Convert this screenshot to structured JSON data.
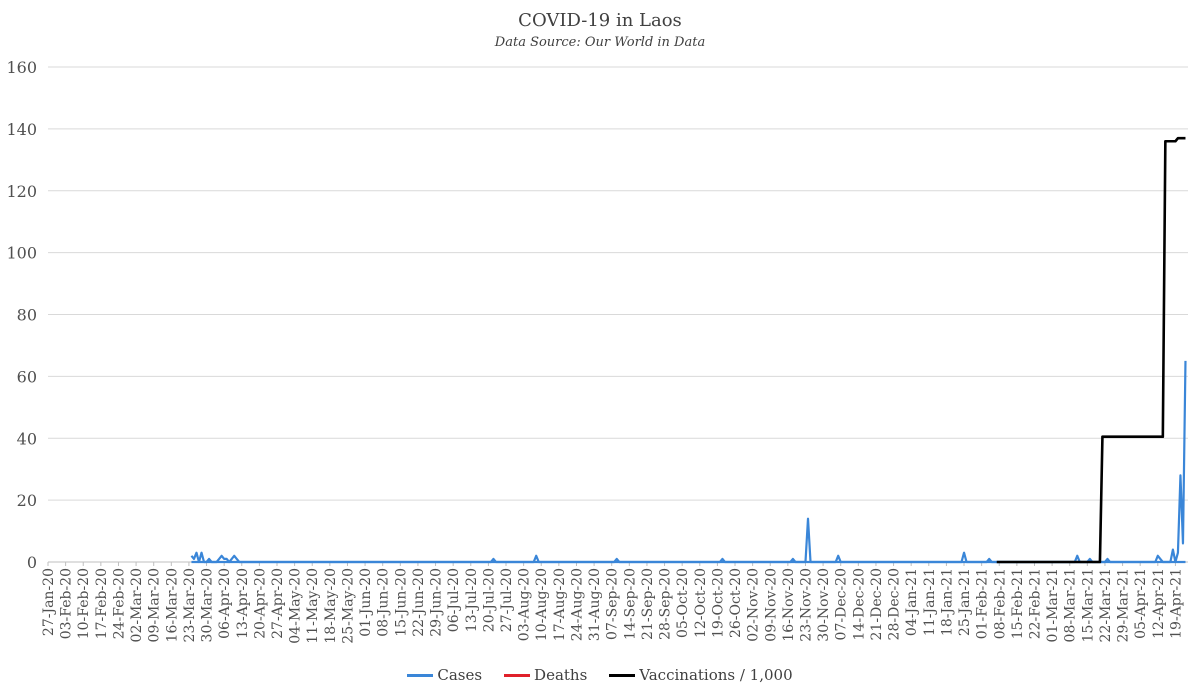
{
  "chart_data": {
    "type": "line",
    "title": "COVID-19 in Laos",
    "subtitle": "Data Source: Our World in Data",
    "xlabel": "",
    "ylabel": "",
    "ylim": [
      0,
      160
    ],
    "yticks": [
      0,
      20,
      40,
      60,
      80,
      100,
      120,
      140,
      160
    ],
    "grid": true,
    "legend_position": "bottom",
    "x_start": "2020-01-27",
    "x_end": "2021-04-21",
    "x_tick_labels": [
      "27-Jan-20",
      "03-Feb-20",
      "10-Feb-20",
      "17-Feb-20",
      "24-Feb-20",
      "02-Mar-20",
      "09-Mar-20",
      "16-Mar-20",
      "23-Mar-20",
      "30-Mar-20",
      "06-Apr-20",
      "13-Apr-20",
      "20-Apr-20",
      "27-Apr-20",
      "04-May-20",
      "11-May-20",
      "18-May-20",
      "25-May-20",
      "01-Jun-20",
      "08-Jun-20",
      "15-Jun-20",
      "22-Jun-20",
      "29-Jun-20",
      "06-Jul-20",
      "13-Jul-20",
      "20-Jul-20",
      "27-Jul-20",
      "03-Aug-20",
      "10-Aug-20",
      "17-Aug-20",
      "24-Aug-20",
      "31-Aug-20",
      "07-Sep-20",
      "14-Sep-20",
      "21-Sep-20",
      "28-Sep-20",
      "05-Oct-20",
      "12-Oct-20",
      "19-Oct-20",
      "26-Oct-20",
      "02-Nov-20",
      "09-Nov-20",
      "16-Nov-20",
      "23-Nov-20",
      "30-Nov-20",
      "07-Dec-20",
      "14-Dec-20",
      "21-Dec-20",
      "28-Dec-20",
      "04-Jan-21",
      "11-Jan-21",
      "18-Jan-21",
      "25-Jan-21",
      "01-Feb-21",
      "08-Feb-21",
      "15-Feb-21",
      "22-Feb-21",
      "01-Mar-21",
      "08-Mar-21",
      "15-Mar-21",
      "22-Mar-21",
      "29-Mar-21",
      "05-Apr-21",
      "12-Apr-21",
      "19-Apr-21"
    ],
    "series": [
      {
        "name": "Cases",
        "color": "#3a86d8",
        "points": [
          [
            "2020-03-24",
            2
          ],
          [
            "2020-03-25",
            1
          ],
          [
            "2020-03-26",
            3
          ],
          [
            "2020-03-27",
            0
          ],
          [
            "2020-03-28",
            3
          ],
          [
            "2020-03-29",
            0
          ],
          [
            "2020-03-30",
            0
          ],
          [
            "2020-03-31",
            1
          ],
          [
            "2020-04-01",
            0
          ],
          [
            "2020-04-02",
            0
          ],
          [
            "2020-04-03",
            0
          ],
          [
            "2020-04-04",
            1
          ],
          [
            "2020-04-05",
            2
          ],
          [
            "2020-04-06",
            1
          ],
          [
            "2020-04-07",
            1
          ],
          [
            "2020-04-08",
            0
          ],
          [
            "2020-04-09",
            1
          ],
          [
            "2020-04-10",
            2
          ],
          [
            "2020-04-11",
            1
          ],
          [
            "2020-04-12",
            0
          ],
          [
            "2020-07-21",
            0
          ],
          [
            "2020-07-22",
            1
          ],
          [
            "2020-07-23",
            0
          ],
          [
            "2020-08-07",
            0
          ],
          [
            "2020-08-08",
            2
          ],
          [
            "2020-08-09",
            0
          ],
          [
            "2020-09-08",
            0
          ],
          [
            "2020-09-09",
            1
          ],
          [
            "2020-09-10",
            0
          ],
          [
            "2020-10-20",
            0
          ],
          [
            "2020-10-21",
            1
          ],
          [
            "2020-10-22",
            0
          ],
          [
            "2020-11-17",
            0
          ],
          [
            "2020-11-18",
            1
          ],
          [
            "2020-11-19",
            0
          ],
          [
            "2020-11-23",
            0
          ],
          [
            "2020-11-24",
            14
          ],
          [
            "2020-11-25",
            0
          ],
          [
            "2020-12-05",
            0
          ],
          [
            "2020-12-06",
            2
          ],
          [
            "2020-12-07",
            0
          ],
          [
            "2021-01-24",
            0
          ],
          [
            "2021-01-25",
            3
          ],
          [
            "2021-01-26",
            0
          ],
          [
            "2021-02-03",
            0
          ],
          [
            "2021-02-04",
            1
          ],
          [
            "2021-02-05",
            0
          ],
          [
            "2021-03-10",
            0
          ],
          [
            "2021-03-11",
            2
          ],
          [
            "2021-03-12",
            0
          ],
          [
            "2021-03-15",
            0
          ],
          [
            "2021-03-16",
            1
          ],
          [
            "2021-03-17",
            0
          ],
          [
            "2021-03-22",
            0
          ],
          [
            "2021-03-23",
            1
          ],
          [
            "2021-03-24",
            0
          ],
          [
            "2021-04-11",
            0
          ],
          [
            "2021-04-12",
            2
          ],
          [
            "2021-04-13",
            1
          ],
          [
            "2021-04-14",
            0
          ],
          [
            "2021-04-17",
            0
          ],
          [
            "2021-04-18",
            4
          ],
          [
            "2021-04-19",
            0
          ],
          [
            "2021-04-20",
            3
          ],
          [
            "2021-04-21",
            28
          ],
          [
            "2021-04-22",
            6
          ],
          [
            "2021-04-23",
            65
          ]
        ],
        "zero_baseline_from": "2020-03-24",
        "zero_baseline_to": "2021-04-23"
      },
      {
        "name": "Deaths",
        "color": "#e0202a",
        "points": []
      },
      {
        "name": "Vaccinations / 1,000",
        "color": "#000000",
        "points": [
          [
            "2021-02-07",
            0
          ],
          [
            "2021-03-20",
            0
          ],
          [
            "2021-03-21",
            40.5
          ],
          [
            "2021-04-14",
            40.5
          ],
          [
            "2021-04-15",
            136
          ],
          [
            "2021-04-19",
            136
          ],
          [
            "2021-04-20",
            137
          ],
          [
            "2021-04-23",
            137
          ]
        ]
      }
    ]
  }
}
